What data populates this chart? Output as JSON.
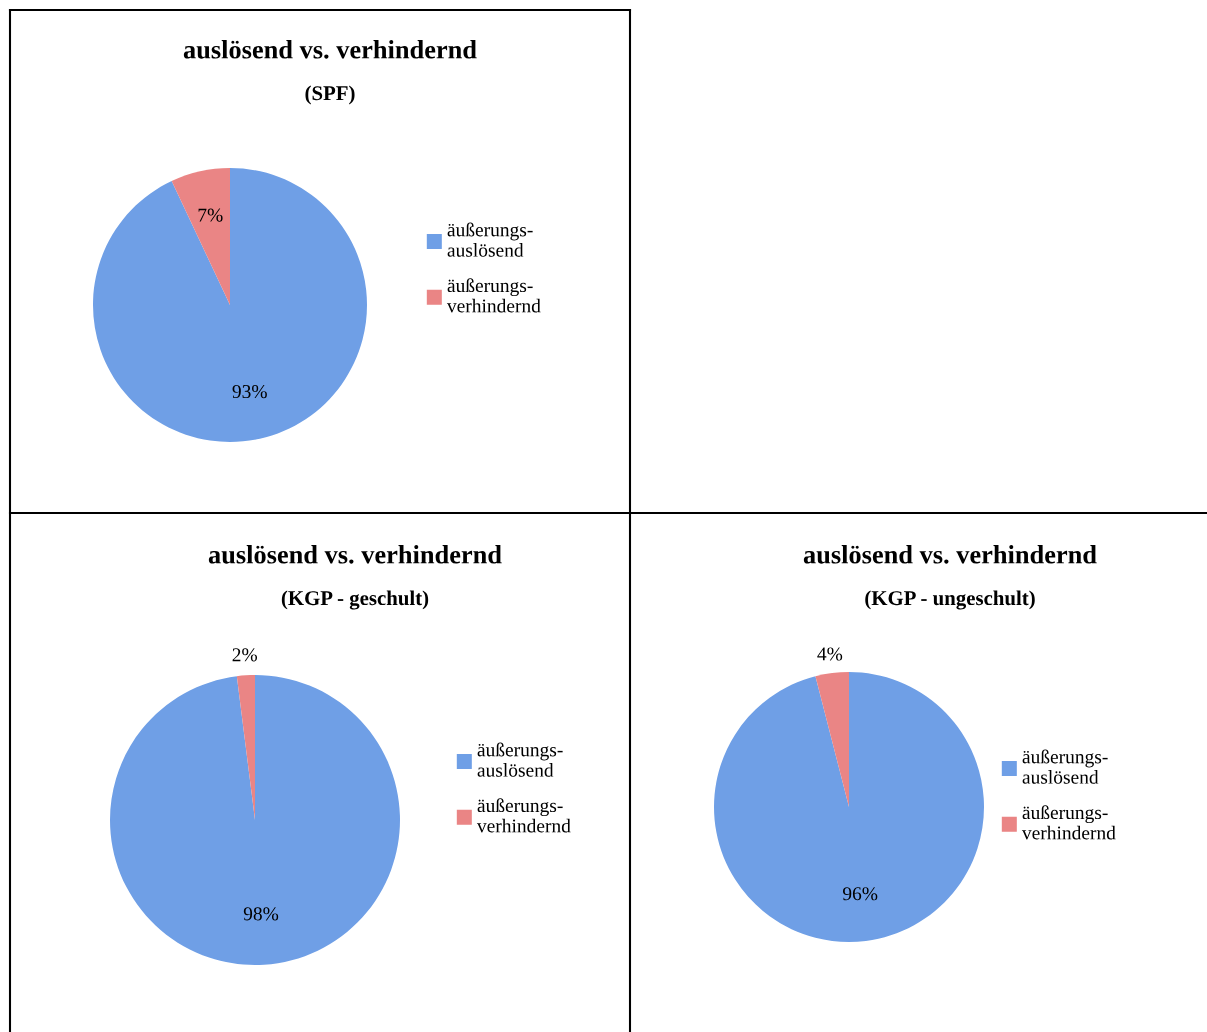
{
  "chart_data": [
    {
      "type": "pie",
      "title": "auslösend vs. verhindernd",
      "subtitle": "(SPF)",
      "categories": [
        "äußerungs-auslösend",
        "äußerungs-verhindernd"
      ],
      "values": [
        93,
        7
      ],
      "colors": [
        "#6f9fe6",
        "#ea8585"
      ],
      "value_labels": [
        "93%",
        "7%"
      ],
      "legend": "right"
    },
    {
      "type": "pie",
      "title": "auslösend vs. verhindernd",
      "subtitle": "(KGP - geschult)",
      "categories": [
        "äußerungs-auslösend",
        "äußerungs-verhindernd"
      ],
      "values": [
        98,
        2
      ],
      "colors": [
        "#6f9fe6",
        "#ea8585"
      ],
      "value_labels": [
        "98%",
        "2%"
      ],
      "legend": "right"
    },
    {
      "type": "pie",
      "title": "auslösend vs. verhindernd",
      "subtitle": "(KGP - ungeschult)",
      "categories": [
        "äußerungs-auslösend",
        "äußerungs-verhindernd"
      ],
      "values": [
        96,
        4
      ],
      "colors": [
        "#6f9fe6",
        "#ea8585"
      ],
      "value_labels": [
        "96%",
        "4%"
      ],
      "legend": "right"
    }
  ]
}
